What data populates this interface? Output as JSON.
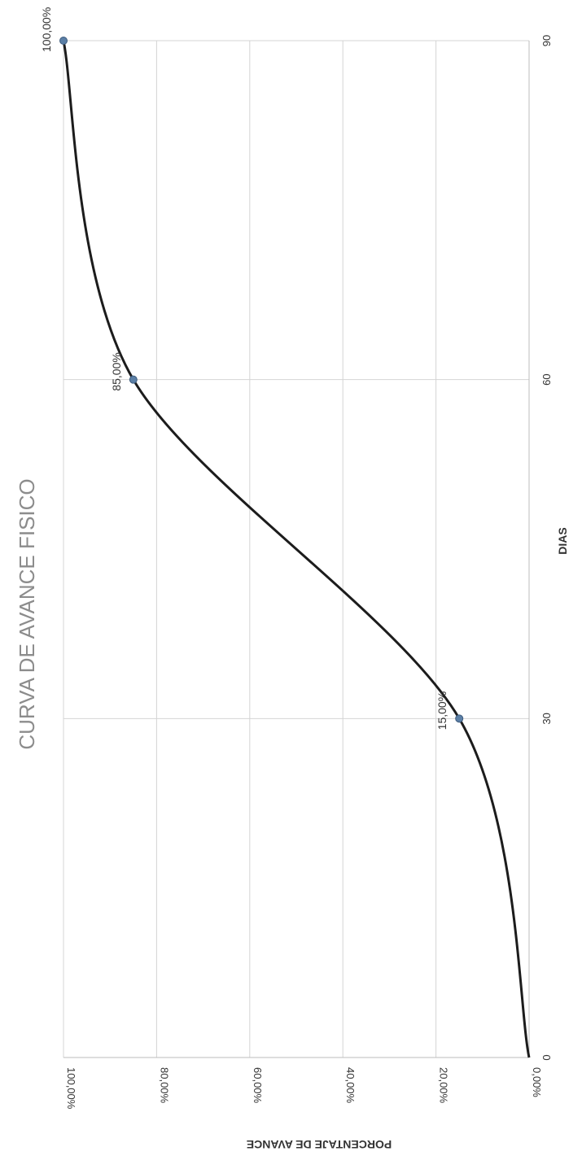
{
  "chart_data": {
    "type": "line",
    "title": "CURVA DE AVANCE FISICO",
    "xlabel": "DIAS",
    "ylabel": "PORCENTAJE DE AVANCE",
    "xlim": [
      0,
      90
    ],
    "ylim": [
      0,
      100
    ],
    "x_ticks": [
      "0",
      "30",
      "60",
      "90"
    ],
    "y_ticks": [
      "0,00%",
      "20,00%",
      "40,00%",
      "60,00%",
      "80,00%",
      "100,00%"
    ],
    "grid": true,
    "series": [
      {
        "points": [
          {
            "x": 0,
            "y": 0,
            "label": ""
          },
          {
            "x": 30,
            "y": 15,
            "label": "15,00%"
          },
          {
            "x": 60,
            "y": 85,
            "label": "85,00%"
          },
          {
            "x": 90,
            "y": 100,
            "label": "100,00%"
          }
        ]
      }
    ],
    "colors": {
      "line": "#1c1c1c",
      "marker": "#5b7fa6",
      "grid": "#d4d4d4",
      "title": "#8c8c8c",
      "text": "#333333"
    }
  }
}
